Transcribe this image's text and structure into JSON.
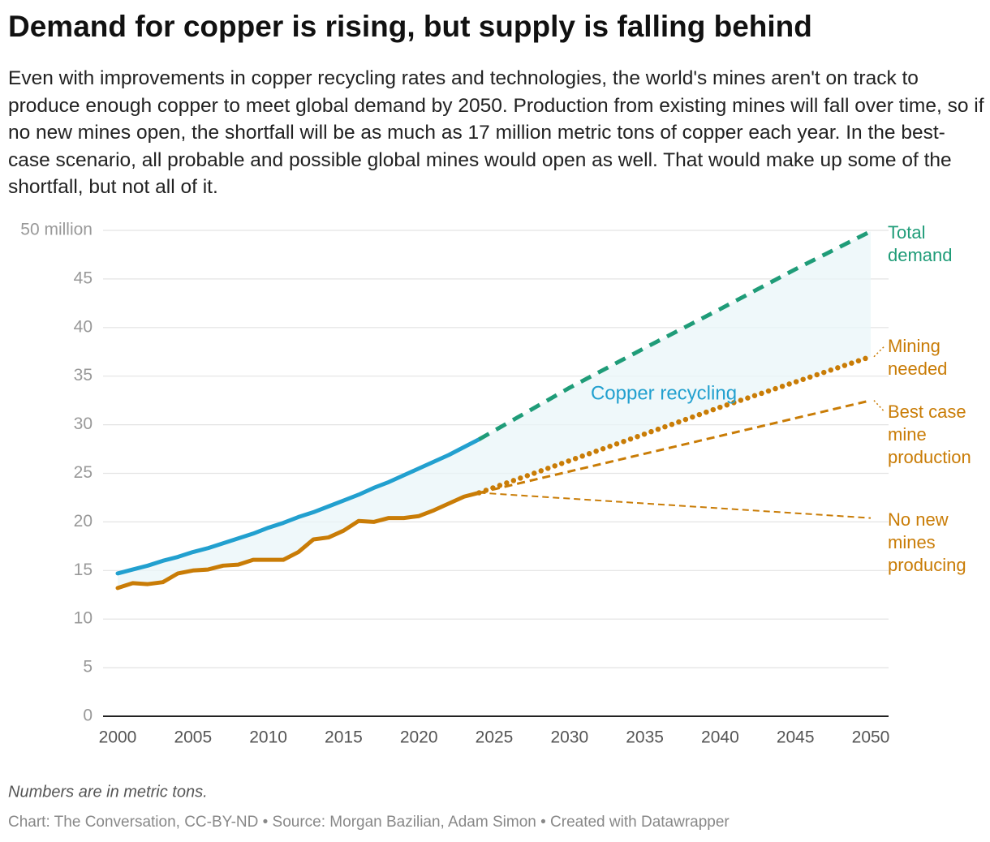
{
  "chart_data": {
    "type": "line",
    "title": "Demand for copper is rising, but supply is falling behind",
    "subtitle": "Even with improvements in copper recycling rates and technologies, the world's mines aren't on track to produce enough copper to meet global demand by 2050. Production from existing mines will fall over time, so if no new mines open, the shortfall will be as much as 17 million metric tons of copper each year. In the best-case scenario, all probable and possible global mines would open as well. That would make up some of the shortfall, but not all of it.",
    "area_label": "Copper recycling",
    "note": "Numbers are in metric tons.",
    "source": "Chart: The Conversation, CC-BY-ND • Source: Morgan Bazilian, Adam Simon • Created with Datawrapper",
    "xlim": [
      2000,
      2050
    ],
    "xticks": [
      2000,
      2005,
      2010,
      2015,
      2020,
      2025,
      2030,
      2035,
      2040,
      2045,
      2050
    ],
    "ylim": [
      0,
      50
    ],
    "yticks": [
      0,
      5,
      10,
      15,
      20,
      25,
      30,
      35,
      40,
      45,
      {
        "value": 50,
        "label": "50 million"
      }
    ],
    "grid": true,
    "series": [
      {
        "color": "#22a0cf",
        "style": "solid",
        "x": [
          2000,
          2001,
          2002,
          2003,
          2004,
          2005,
          2006,
          2007,
          2008,
          2009,
          2010,
          2011,
          2012,
          2013,
          2014,
          2015,
          2016,
          2017,
          2018,
          2019,
          2020,
          2021,
          2022,
          2023,
          2024
        ],
        "values": [
          14.7,
          15.1,
          15.5,
          16.0,
          16.4,
          16.9,
          17.3,
          17.8,
          18.3,
          18.8,
          19.4,
          19.9,
          20.5,
          21.0,
          21.6,
          22.2,
          22.8,
          23.5,
          24.1,
          24.8,
          25.5,
          26.2,
          26.9,
          27.7,
          28.5
        ]
      },
      {
        "color": "#c97c06",
        "style": "solid",
        "x": [
          2000,
          2001,
          2002,
          2003,
          2004,
          2005,
          2006,
          2007,
          2008,
          2009,
          2010,
          2011,
          2012,
          2013,
          2014,
          2015,
          2016,
          2017,
          2018,
          2019,
          2020,
          2021,
          2022,
          2023,
          2024
        ],
        "values": [
          13.2,
          13.7,
          13.6,
          13.8,
          14.7,
          15.0,
          15.1,
          15.5,
          15.6,
          16.1,
          16.1,
          16.1,
          16.9,
          18.2,
          18.4,
          19.1,
          20.1,
          20.0,
          20.4,
          20.4,
          20.6,
          21.2,
          21.9,
          22.6,
          23.0
        ]
      },
      {
        "name": "Total demand",
        "color": "#1f9c78",
        "style": "dashed",
        "x": [
          2024,
          2030,
          2035,
          2040,
          2045,
          2050
        ],
        "values": [
          28.5,
          33.8,
          37.9,
          41.9,
          46.0,
          49.9
        ]
      },
      {
        "name": "Mining needed",
        "color": "#c97c06",
        "style": "dotted",
        "x": [
          2024,
          2030,
          2040,
          2050
        ],
        "values": [
          23.0,
          26.3,
          31.8,
          37.0
        ]
      },
      {
        "name": "Best case mine production",
        "color": "#c97c06",
        "style": "dashed-thin",
        "x": [
          2024,
          2050
        ],
        "values": [
          23.0,
          32.5
        ]
      },
      {
        "name": "No new mines producing",
        "color": "#c97c06",
        "style": "dashed-fine",
        "x": [
          2024,
          2050
        ],
        "values": [
          23.0,
          20.4
        ]
      }
    ]
  }
}
